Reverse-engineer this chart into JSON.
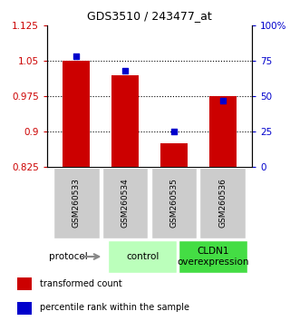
{
  "title": "GDS3510 / 243477_at",
  "samples": [
    "GSM260533",
    "GSM260534",
    "GSM260535",
    "GSM260536"
  ],
  "bar_values": [
    1.05,
    1.02,
    0.875,
    0.975
  ],
  "percentile_values": [
    78,
    68,
    25,
    47
  ],
  "ylim_left": [
    0.825,
    1.125
  ],
  "ylim_right": [
    0,
    100
  ],
  "yticks_left": [
    0.825,
    0.9,
    0.975,
    1.05,
    1.125
  ],
  "yticks_right": [
    0,
    25,
    50,
    75,
    100
  ],
  "ytick_labels_left": [
    "0.825",
    "0.9",
    "0.975",
    "1.05",
    "1.125"
  ],
  "ytick_labels_right": [
    "0",
    "25",
    "50",
    "75",
    "100%"
  ],
  "bar_color": "#cc0000",
  "dot_color": "#0000cc",
  "bar_width": 0.55,
  "groups": [
    {
      "label": "control",
      "indices": [
        0,
        1
      ],
      "color": "#bbffbb"
    },
    {
      "label": "CLDN1\noverexpression",
      "indices": [
        2,
        3
      ],
      "color": "#44dd44"
    }
  ],
  "protocol_label": "protocol",
  "legend_items": [
    {
      "color": "#cc0000",
      "label": "transformed count"
    },
    {
      "color": "#0000cc",
      "label": "percentile rank within the sample"
    }
  ],
  "sample_box_color": "#cccccc",
  "background_color": "#ffffff"
}
